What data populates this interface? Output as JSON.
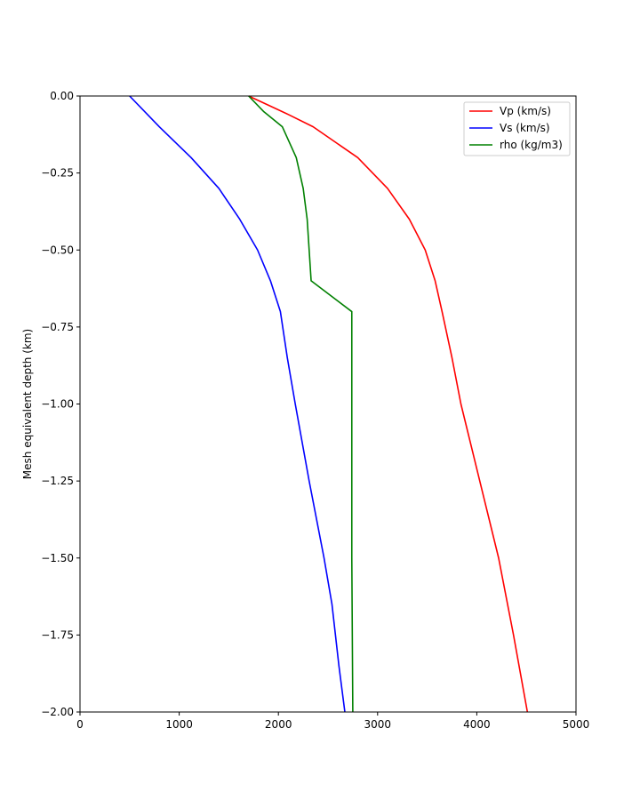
{
  "chart_data": {
    "type": "line",
    "title": "",
    "xlabel": "",
    "ylabel": "Mesh equivalent depth (km)",
    "xlim": [
      0,
      5000
    ],
    "ylim": [
      -2.0,
      0.0
    ],
    "x_ticks": [
      "0",
      "1000",
      "2000",
      "3000",
      "4000",
      "5000"
    ],
    "y_ticks": [
      "0.00",
      "−0.25",
      "−0.50",
      "−0.75",
      "−1.00",
      "−1.25",
      "−1.50",
      "−1.75",
      "−2.00"
    ],
    "grid": false,
    "legend_position": "top-right",
    "series": [
      {
        "name": "Vp (km/s)",
        "color": "#ff0000",
        "x": [
          1700,
          1900,
          2100,
          2350,
          2800,
          3100,
          3320,
          3480,
          3580,
          3650,
          3750,
          3840,
          4030,
          4220,
          4370,
          4510
        ],
        "y": [
          0.0,
          -0.03,
          -0.06,
          -0.1,
          -0.2,
          -0.3,
          -0.4,
          -0.5,
          -0.6,
          -0.7,
          -0.85,
          -1.0,
          -1.25,
          -1.5,
          -1.75,
          -2.0
        ]
      },
      {
        "name": "Vs (km/s)",
        "color": "#0000ff",
        "x": [
          500,
          800,
          1120,
          1400,
          1610,
          1790,
          1920,
          2020,
          2090,
          2170,
          2310,
          2460,
          2540,
          2610,
          2670
        ],
        "y": [
          0.0,
          -0.1,
          -0.2,
          -0.3,
          -0.4,
          -0.5,
          -0.6,
          -0.7,
          -0.85,
          -1.0,
          -1.25,
          -1.5,
          -1.65,
          -1.85,
          -2.0
        ]
      },
      {
        "name": "rho (kg/m3)",
        "color": "#008000",
        "x": [
          1700,
          1850,
          2040,
          2180,
          2250,
          2290,
          2310,
          2330,
          2740,
          2740,
          2750
        ],
        "y": [
          0.0,
          -0.05,
          -0.1,
          -0.2,
          -0.3,
          -0.4,
          -0.5,
          -0.6,
          -0.7,
          -1.5,
          -2.0
        ]
      }
    ]
  }
}
